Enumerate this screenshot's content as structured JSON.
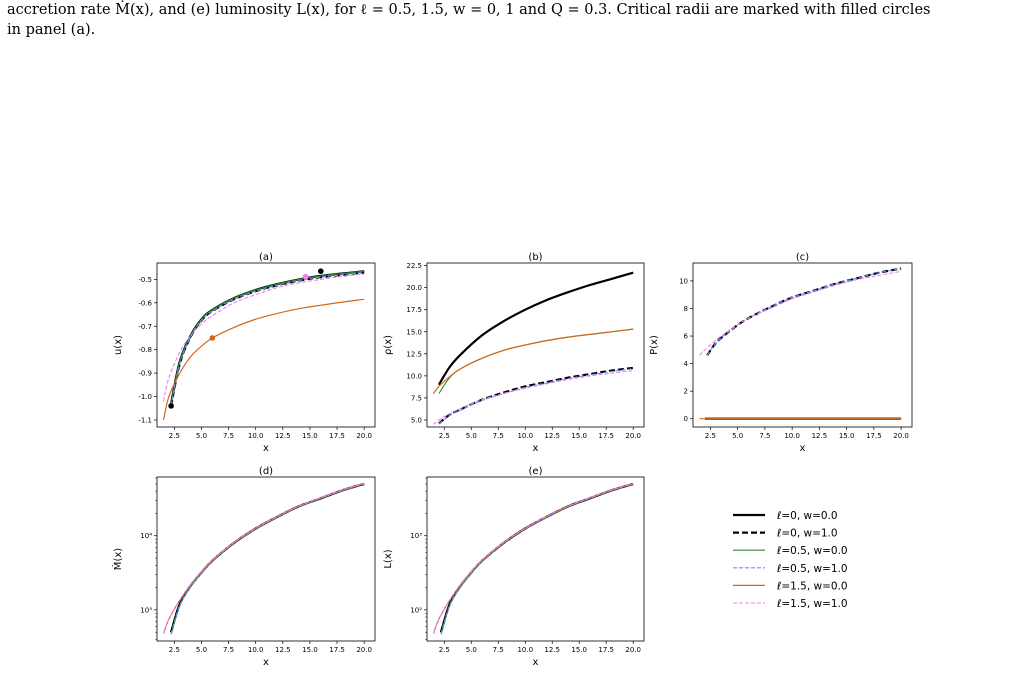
{
  "caption": {
    "line1": "accretion rate Ṁ(x), and (e) luminosity L(x), for ℓ = 0.5, 1.5, w = 0, 1 and Q = 0.3. Critical radii are marked with filled circles",
    "line2": "in panel (a)."
  },
  "chart_data": [
    {
      "type": "line",
      "title": "(a)",
      "xlabel": "x",
      "ylabel": "u(x)",
      "xlim": [
        0.9,
        21.0
      ],
      "ylim": [
        -1.13,
        -0.43
      ],
      "yscale": "linear",
      "xticks": [
        "2.5",
        "5.0",
        "7.5",
        "10.0",
        "12.5",
        "15.0",
        "17.5",
        "20.0"
      ],
      "yticks": [
        "-0.5",
        "-0.6",
        "-0.7",
        "-0.8",
        "-0.9",
        "-1.0",
        "-1.1"
      ],
      "series": [
        {
          "name": "ℓ=0, w=0.0",
          "x": [
            2.2,
            3,
            4,
            5,
            6,
            8,
            10,
            12,
            14,
            16,
            18,
            20
          ],
          "y": [
            -1.03,
            -0.85,
            -0.74,
            -0.67,
            -0.63,
            -0.58,
            -0.545,
            -0.52,
            -0.5,
            -0.485,
            -0.475,
            -0.465
          ]
        },
        {
          "name": "ℓ=0, w=1.0",
          "x": [
            2.2,
            3,
            4,
            5,
            6,
            8,
            10,
            12,
            14,
            16,
            18,
            20
          ],
          "y": [
            -1.04,
            -0.86,
            -0.745,
            -0.675,
            -0.635,
            -0.585,
            -0.55,
            -0.525,
            -0.505,
            -0.49,
            -0.48,
            -0.47
          ]
        },
        {
          "name": "ℓ=0.5, w=0.0",
          "x": [
            2.2,
            3,
            4,
            5,
            6,
            8,
            10,
            12,
            14,
            16,
            18,
            20
          ],
          "y": [
            -1.03,
            -0.85,
            -0.74,
            -0.67,
            -0.63,
            -0.58,
            -0.545,
            -0.52,
            -0.5,
            -0.485,
            -0.475,
            -0.465
          ]
        },
        {
          "name": "ℓ=0.5, w=1.0",
          "x": [
            2.2,
            3,
            4,
            5,
            6,
            8,
            10,
            12,
            14,
            16,
            18,
            20
          ],
          "y": [
            -1.04,
            -0.86,
            -0.745,
            -0.675,
            -0.635,
            -0.585,
            -0.55,
            -0.525,
            -0.505,
            -0.49,
            -0.48,
            -0.47
          ]
        },
        {
          "name": "ℓ=1.5, w=0.0",
          "x": [
            1.5,
            2,
            3,
            4,
            5,
            6,
            8,
            10,
            12,
            14,
            16,
            18,
            20
          ],
          "y": [
            -1.1,
            -1.0,
            -0.9,
            -0.83,
            -0.785,
            -0.75,
            -0.705,
            -0.67,
            -0.645,
            -0.625,
            -0.61,
            -0.597,
            -0.585
          ]
        },
        {
          "name": "ℓ=1.5, w=1.0",
          "x": [
            1.5,
            2,
            3,
            4,
            5,
            6,
            8,
            10,
            12,
            14,
            16,
            18,
            20
          ],
          "y": [
            -1.02,
            -0.92,
            -0.81,
            -0.74,
            -0.69,
            -0.655,
            -0.6,
            -0.565,
            -0.535,
            -0.515,
            -0.5,
            -0.487,
            -0.477
          ]
        }
      ],
      "critical_points": [
        {
          "x": 2.2,
          "y": -1.04,
          "color": "#000000"
        },
        {
          "x": 16.0,
          "y": -0.465,
          "color": "#000000"
        },
        {
          "x": 14.6,
          "y": -0.488,
          "color": "#ee82ee"
        },
        {
          "x": 6.0,
          "y": -0.75,
          "color": "#d2691e"
        }
      ]
    },
    {
      "type": "line",
      "title": "(b)",
      "xlabel": "x",
      "ylabel": "ρ(x)",
      "xlim": [
        0.9,
        21.0
      ],
      "ylim": [
        4.2,
        22.8
      ],
      "yscale": "linear",
      "xticks": [
        "2.5",
        "5.0",
        "7.5",
        "10.0",
        "12.5",
        "15.0",
        "17.5",
        "20.0"
      ],
      "yticks": [
        "22.5",
        "20.0",
        "17.5",
        "15.0",
        "12.5",
        "10.0",
        "7.5",
        "5.0"
      ],
      "series": [
        {
          "name": "ℓ=0, w=0.0",
          "x": [
            2,
            3,
            4,
            6,
            8,
            10,
            12,
            14,
            16,
            18,
            20
          ],
          "y": [
            9.0,
            11.0,
            12.4,
            14.6,
            16.2,
            17.5,
            18.6,
            19.5,
            20.3,
            21.0,
            21.7
          ]
        },
        {
          "name": "ℓ=0, w=1.0",
          "x": [
            2,
            3,
            4,
            6,
            8,
            10,
            12,
            14,
            16,
            18,
            20
          ],
          "y": [
            4.6,
            5.6,
            6.2,
            7.3,
            8.1,
            8.8,
            9.3,
            9.8,
            10.2,
            10.6,
            10.9
          ]
        },
        {
          "name": "ℓ=0.5, w=0.0",
          "x": [
            2,
            3,
            4,
            6,
            8,
            10,
            12,
            14,
            16,
            18,
            20
          ],
          "y": [
            8.0,
            9.8,
            10.8,
            12.0,
            12.9,
            13.5,
            14.0,
            14.4,
            14.7,
            15.0,
            15.3
          ]
        },
        {
          "name": "ℓ=0.5, w=1.0",
          "x": [
            2,
            3,
            4,
            6,
            8,
            10,
            12,
            14,
            16,
            18,
            20
          ],
          "y": [
            4.6,
            5.5,
            6.1,
            7.2,
            8.0,
            8.7,
            9.2,
            9.7,
            10.1,
            10.5,
            10.8
          ]
        },
        {
          "name": "ℓ=1.5, w=0.0",
          "x": [
            1.5,
            2,
            3,
            4,
            6,
            8,
            10,
            12,
            14,
            16,
            18,
            20
          ],
          "y": [
            8.0,
            8.8,
            9.9,
            10.8,
            12.0,
            12.9,
            13.5,
            14.0,
            14.4,
            14.7,
            15.0,
            15.3
          ]
        },
        {
          "name": "ℓ=1.5, w=1.0",
          "x": [
            1.5,
            2,
            3,
            4,
            6,
            8,
            10,
            12,
            14,
            16,
            18,
            20
          ],
          "y": [
            4.5,
            5.0,
            5.7,
            6.3,
            7.3,
            8.0,
            8.6,
            9.1,
            9.6,
            10.0,
            10.3,
            10.6
          ]
        }
      ]
    },
    {
      "type": "line",
      "title": "(c)",
      "xlabel": "x",
      "ylabel": "P(x)",
      "xlim": [
        0.9,
        21.0
      ],
      "ylim": [
        -0.6,
        11.3
      ],
      "yscale": "linear",
      "xticks": [
        "2.5",
        "5.0",
        "7.5",
        "10.0",
        "12.5",
        "15.0",
        "17.5",
        "20.0"
      ],
      "yticks": [
        "10",
        "8",
        "6",
        "4",
        "2",
        "0"
      ],
      "series": [
        {
          "name": "ℓ=0, w=0.0",
          "x": [
            2,
            20
          ],
          "y": [
            0,
            0
          ]
        },
        {
          "name": "ℓ=0, w=1.0",
          "x": [
            2.2,
            3,
            4,
            5,
            6,
            8,
            10,
            12,
            14,
            16,
            18,
            20
          ],
          "y": [
            4.6,
            5.5,
            6.2,
            6.8,
            7.3,
            8.1,
            8.8,
            9.3,
            9.8,
            10.2,
            10.6,
            10.9
          ]
        },
        {
          "name": "ℓ=0.5, w=0.0",
          "x": [
            2,
            20
          ],
          "y": [
            0,
            0
          ]
        },
        {
          "name": "ℓ=0.5, w=1.0",
          "x": [
            2.2,
            3,
            4,
            5,
            6,
            8,
            10,
            12,
            14,
            16,
            18,
            20
          ],
          "y": [
            4.6,
            5.5,
            6.2,
            6.8,
            7.3,
            8.1,
            8.8,
            9.3,
            9.8,
            10.2,
            10.6,
            10.9
          ]
        },
        {
          "name": "ℓ=1.5, w=0.0",
          "x": [
            1.5,
            20
          ],
          "y": [
            0,
            0
          ]
        },
        {
          "name": "ℓ=1.5, w=1.0",
          "x": [
            1.5,
            2,
            3,
            4,
            5,
            6,
            8,
            10,
            12,
            14,
            16,
            18,
            20
          ],
          "y": [
            4.6,
            5.0,
            5.7,
            6.3,
            6.8,
            7.3,
            8.0,
            8.7,
            9.2,
            9.7,
            10.1,
            10.4,
            10.7
          ]
        }
      ]
    },
    {
      "type": "line",
      "title": "(d)",
      "xlabel": "x",
      "ylabel": "Ṁ(x)",
      "xlim": [
        0.9,
        21.0
      ],
      "ylim": [
        380,
        62000
      ],
      "yscale": "log",
      "xticks": [
        "2.5",
        "5.0",
        "7.5",
        "10.0",
        "12.5",
        "15.0",
        "17.5",
        "20.0"
      ],
      "yticks": [
        "10⁴",
        "10³"
      ],
      "series": [
        {
          "name": "ℓ=0, w=0.0",
          "x": [
            2.2,
            3,
            4,
            5,
            6,
            8,
            10,
            12,
            14,
            16,
            18,
            20
          ],
          "y": [
            500,
            1200,
            2100,
            3200,
            4600,
            8000,
            12500,
            18000,
            25000,
            32000,
            41000,
            50000
          ]
        },
        {
          "name": "ℓ=0, w=1.0",
          "x": [
            2.2,
            3,
            4,
            5,
            6,
            8,
            10,
            12,
            14,
            16,
            18,
            20
          ],
          "y": [
            500,
            1200,
            2100,
            3200,
            4600,
            8000,
            12500,
            18000,
            25000,
            32000,
            41000,
            50000
          ]
        },
        {
          "name": "ℓ=0.5, w=0.0",
          "x": [
            2.2,
            3,
            4,
            5,
            6,
            8,
            10,
            12,
            14,
            16,
            18,
            20
          ],
          "y": [
            470,
            1150,
            2050,
            3150,
            4550,
            7950,
            12400,
            17900,
            24800,
            31900,
            40800,
            49800
          ]
        },
        {
          "name": "ℓ=0.5, w=1.0",
          "x": [
            2.2,
            3,
            4,
            5,
            6,
            8,
            10,
            12,
            14,
            16,
            18,
            20
          ],
          "y": [
            480,
            1160,
            2060,
            3160,
            4560,
            7960,
            12420,
            17920,
            24850,
            31950,
            40850,
            49850
          ]
        },
        {
          "name": "ℓ=1.5, w=0.0",
          "x": [
            1.5,
            2,
            3,
            4,
            5,
            6,
            8,
            10,
            12,
            14,
            16,
            18,
            20
          ],
          "y": [
            480,
            750,
            1350,
            2200,
            3300,
            4700,
            8100,
            12600,
            18200,
            25200,
            32500,
            41500,
            50500
          ]
        },
        {
          "name": "ℓ=1.5, w=1.0",
          "x": [
            1.5,
            2,
            3,
            4,
            5,
            6,
            8,
            10,
            12,
            14,
            16,
            18,
            20
          ],
          "y": [
            480,
            750,
            1350,
            2200,
            3300,
            4700,
            8100,
            12600,
            18200,
            25200,
            32500,
            41500,
            50500
          ]
        }
      ]
    },
    {
      "type": "line",
      "title": "(e)",
      "xlabel": "x",
      "ylabel": "L(x)",
      "xlim": [
        0.9,
        21.0
      ],
      "ylim": [
        38,
        6200
      ],
      "yscale": "log",
      "xticks": [
        "2.5",
        "5.0",
        "7.5",
        "10.0",
        "12.5",
        "15.0",
        "17.5",
        "20.0"
      ],
      "yticks": [
        "10³",
        "10²"
      ],
      "series": [
        {
          "name": "ℓ=0, w=0.0",
          "x": [
            2.2,
            3,
            4,
            5,
            6,
            8,
            10,
            12,
            14,
            16,
            18,
            20
          ],
          "y": [
            50,
            120,
            210,
            320,
            460,
            800,
            1250,
            1800,
            2500,
            3200,
            4100,
            5000
          ]
        },
        {
          "name": "ℓ=0, w=1.0",
          "x": [
            2.2,
            3,
            4,
            5,
            6,
            8,
            10,
            12,
            14,
            16,
            18,
            20
          ],
          "y": [
            50,
            120,
            210,
            320,
            460,
            800,
            1250,
            1800,
            2500,
            3200,
            4100,
            5000
          ]
        },
        {
          "name": "ℓ=0.5, w=0.0",
          "x": [
            2.2,
            3,
            4,
            5,
            6,
            8,
            10,
            12,
            14,
            16,
            18,
            20
          ],
          "y": [
            47,
            115,
            205,
            315,
            455,
            795,
            1240,
            1790,
            2480,
            3190,
            4080,
            4980
          ]
        },
        {
          "name": "ℓ=0.5, w=1.0",
          "x": [
            2.2,
            3,
            4,
            5,
            6,
            8,
            10,
            12,
            14,
            16,
            18,
            20
          ],
          "y": [
            48,
            116,
            206,
            316,
            456,
            796,
            1242,
            1792,
            2485,
            3195,
            4085,
            4985
          ]
        },
        {
          "name": "ℓ=1.5, w=0.0",
          "x": [
            1.5,
            2,
            3,
            4,
            5,
            6,
            8,
            10,
            12,
            14,
            16,
            18,
            20
          ],
          "y": [
            48,
            75,
            135,
            220,
            330,
            470,
            810,
            1260,
            1820,
            2520,
            3250,
            4150,
            5050
          ]
        },
        {
          "name": "ℓ=1.5, w=1.0",
          "x": [
            1.5,
            2,
            3,
            4,
            5,
            6,
            8,
            10,
            12,
            14,
            16,
            18,
            20
          ],
          "y": [
            48,
            75,
            135,
            220,
            330,
            470,
            810,
            1260,
            1820,
            2520,
            3250,
            4150,
            5050
          ]
        }
      ]
    }
  ],
  "legend": {
    "placement": "right",
    "entries": [
      {
        "label": "ℓ=0, w=0.0",
        "color": "#000000",
        "dash": "solid",
        "weight": "heavy"
      },
      {
        "label": "ℓ=0, w=1.0",
        "color": "#000000",
        "dash": "dashed",
        "weight": "heavy"
      },
      {
        "label": "ℓ=0.5, w=0.0",
        "color": "#2e8b2e",
        "dash": "solid",
        "weight": "thin"
      },
      {
        "label": "ℓ=0.5, w=1.0",
        "color": "#6495ed",
        "dash": "dashed",
        "weight": "thin"
      },
      {
        "label": "ℓ=1.5, w=0.0",
        "color": "#d2691e",
        "dash": "solid",
        "weight": "thin"
      },
      {
        "label": "ℓ=1.5, w=1.0",
        "color": "#ee82ee",
        "dash": "dashed",
        "weight": "thin"
      }
    ]
  }
}
